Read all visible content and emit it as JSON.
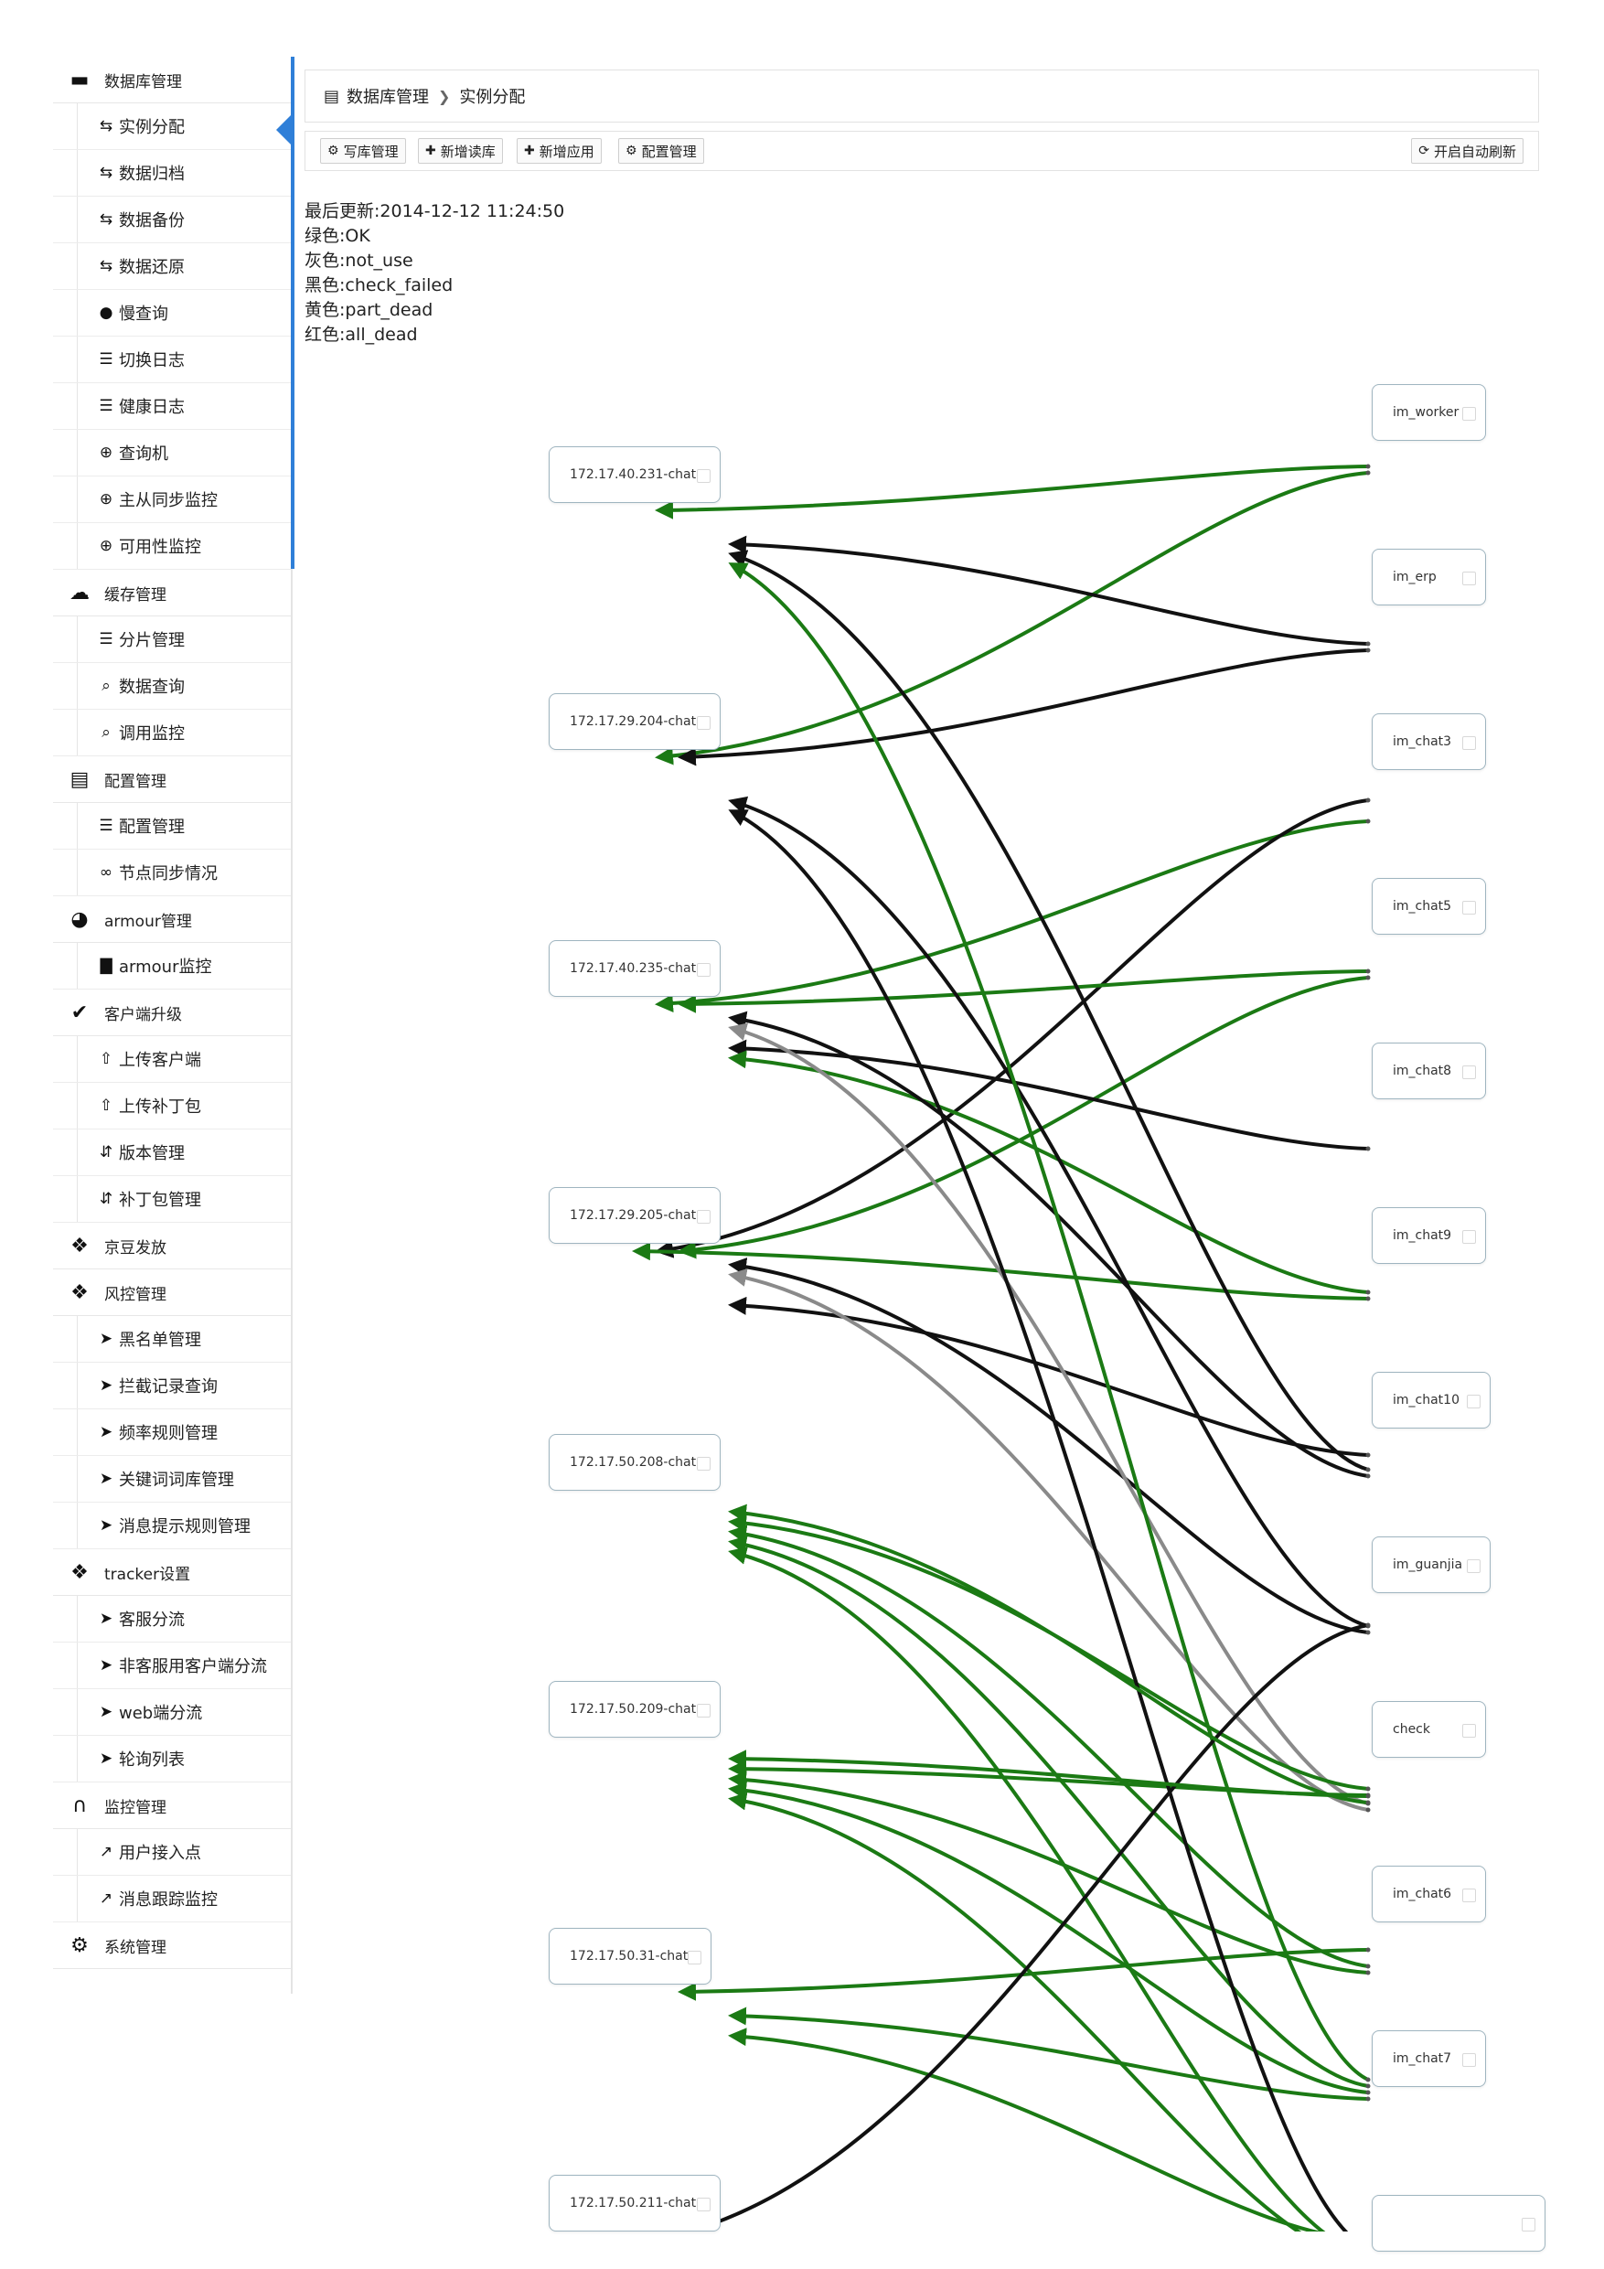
{
  "sidebar": {
    "groups": [
      {
        "id": "db",
        "label": "数据库管理",
        "icon": "database-icon",
        "items": [
          {
            "label": "实例分配",
            "icon": "retweet-icon",
            "active": true
          },
          {
            "label": "数据归档",
            "icon": "retweet-icon"
          },
          {
            "label": "数据备份",
            "icon": "retweet-icon"
          },
          {
            "label": "数据还原",
            "icon": "retweet-icon"
          },
          {
            "label": "慢查询",
            "icon": "map-marker-icon"
          },
          {
            "label": "切换日志",
            "icon": "server-icon"
          },
          {
            "label": "健康日志",
            "icon": "server-icon"
          },
          {
            "label": "查询机",
            "icon": "zoom-in-icon"
          },
          {
            "label": "主从同步监控",
            "icon": "zoom-in-icon"
          },
          {
            "label": "可用性监控",
            "icon": "zoom-in-icon"
          }
        ]
      },
      {
        "id": "cache",
        "label": "缓存管理",
        "icon": "cloud-icon",
        "items": [
          {
            "label": "分片管理",
            "icon": "list-icon"
          },
          {
            "label": "数据查询",
            "icon": "search-icon"
          },
          {
            "label": "调用监控",
            "icon": "search-icon"
          }
        ]
      },
      {
        "id": "config",
        "label": "配置管理",
        "icon": "list-alt-icon",
        "items": [
          {
            "label": "配置管理",
            "icon": "list-icon"
          },
          {
            "label": "节点同步情况",
            "icon": "link-icon"
          }
        ]
      },
      {
        "id": "armour",
        "label": "armour管理",
        "icon": "globe-icon",
        "items": [
          {
            "label": "armour监控",
            "icon": "bar-chart-icon"
          }
        ]
      },
      {
        "id": "client",
        "label": "客户端升级",
        "icon": "check-mark-icon",
        "items": [
          {
            "label": "上传客户端",
            "icon": "upload-icon"
          },
          {
            "label": "上传补丁包",
            "icon": "upload-icon"
          },
          {
            "label": "版本管理",
            "icon": "sort-icon"
          },
          {
            "label": "补丁包管理",
            "icon": "sort-icon"
          }
        ]
      },
      {
        "id": "jd",
        "label": "京豆发放",
        "icon": "gift-icon",
        "items": []
      },
      {
        "id": "risk",
        "label": "风控管理",
        "icon": "gift-icon",
        "items": [
          {
            "label": "黑名单管理",
            "icon": "send-icon"
          },
          {
            "label": "拦截记录查询",
            "icon": "send-icon"
          },
          {
            "label": "频率规则管理",
            "icon": "send-icon"
          },
          {
            "label": "关键词词库管理",
            "icon": "send-icon"
          },
          {
            "label": "消息提示规则管理",
            "icon": "send-icon"
          }
        ]
      },
      {
        "id": "tracker",
        "label": "tracker设置",
        "icon": "gift-icon",
        "items": [
          {
            "label": "客服分流",
            "icon": "send-icon"
          },
          {
            "label": "非客服用客户端分流",
            "icon": "send-icon"
          },
          {
            "label": "web端分流",
            "icon": "send-icon"
          },
          {
            "label": "轮询列表",
            "icon": "send-icon"
          }
        ]
      },
      {
        "id": "monitor",
        "label": "监控管理",
        "icon": "headphones-icon",
        "items": [
          {
            "label": "用户接入点",
            "icon": "pushpin-icon"
          },
          {
            "label": "消息跟踪监控",
            "icon": "pushpin-icon"
          }
        ]
      },
      {
        "id": "system",
        "label": "系统管理",
        "icon": "gear-icon",
        "items": []
      }
    ]
  },
  "breadcrumb": {
    "icon": "database-icon",
    "parent": "数据库管理",
    "current": "实例分配"
  },
  "toolbar": {
    "write_db": "写库管理",
    "add_read_db": "新增读库",
    "add_app": "新增应用",
    "config_manage": "配置管理",
    "auto_refresh": "开启自动刷新"
  },
  "status": {
    "updated_label": "最后更新:",
    "updated_value": "2014-12-12 11:24:50",
    "legend": [
      {
        "label": "绿色:",
        "value": "OK"
      },
      {
        "label": "灰色:",
        "value": "not_use"
      },
      {
        "label": "黑色:",
        "value": "check_failed"
      },
      {
        "label": "黄色:",
        "value": "part_dead"
      },
      {
        "label": "红色:",
        "value": "all_dead"
      }
    ]
  },
  "graph": {
    "colors": {
      "green": "#1b7a14",
      "gray": "#8a8a8a",
      "black": "#111111",
      "lightgreen": "#d7ead5",
      "lightgray": "#cfcfcf"
    },
    "left_nodes": [
      {
        "id": "L0",
        "label": "172.17.40.231-chat"
      },
      {
        "id": "L1",
        "label": "172.17.29.204-chat"
      },
      {
        "id": "L2",
        "label": "172.17.40.235-chat"
      },
      {
        "id": "L3",
        "label": "172.17.29.205-chat"
      },
      {
        "id": "L4",
        "label": "172.17.50.208-chat"
      },
      {
        "id": "L5",
        "label": "172.17.50.209-chat"
      },
      {
        "id": "L6",
        "label": "172.17.50.31-chat"
      },
      {
        "id": "L7",
        "label": "172.17.50.211-chat"
      }
    ],
    "right_nodes": [
      {
        "id": "R0",
        "label": "im_worker"
      },
      {
        "id": "R1",
        "label": "im_erp"
      },
      {
        "id": "R2",
        "label": "im_chat3"
      },
      {
        "id": "R3",
        "label": "im_chat5"
      },
      {
        "id": "R4",
        "label": "im_chat8"
      },
      {
        "id": "R5",
        "label": "im_chat9"
      },
      {
        "id": "R6",
        "label": "im_chat10"
      },
      {
        "id": "R7",
        "label": "im_guanjia"
      },
      {
        "id": "R8",
        "label": "check"
      },
      {
        "id": "R9",
        "label": "im_chat6"
      },
      {
        "id": "R10",
        "label": "im_chat7"
      },
      {
        "id": "R11",
        "label": ""
      }
    ],
    "links": [
      {
        "from": "R0",
        "to": "L0",
        "color": "green",
        "dir": "left"
      },
      {
        "from": "R0",
        "to": "L1",
        "color": "green",
        "dir": "left"
      },
      {
        "from": "R1",
        "to": "L0",
        "color": "black",
        "dir": "right"
      },
      {
        "from": "R1",
        "to": "L1",
        "color": "black",
        "dir": "left"
      },
      {
        "from": "R2",
        "to": "L2",
        "color": "green",
        "dir": "left"
      },
      {
        "from": "R2",
        "to": "L3",
        "color": "black",
        "dir": "left"
      },
      {
        "from": "R3",
        "to": "L2",
        "color": "green",
        "dir": "left"
      },
      {
        "from": "R3",
        "to": "L3",
        "color": "green",
        "dir": "left"
      },
      {
        "from": "R4",
        "to": "L2",
        "color": "black",
        "dir": "right"
      },
      {
        "from": "R5",
        "to": "L2",
        "color": "green",
        "dir": "right"
      },
      {
        "from": "R5",
        "to": "L3",
        "color": "green",
        "dir": "left"
      },
      {
        "from": "R6",
        "to": "L0",
        "color": "black",
        "dir": "right"
      },
      {
        "from": "R6",
        "to": "L2",
        "color": "black",
        "dir": "right"
      },
      {
        "from": "R6",
        "to": "L3",
        "color": "black",
        "dir": "right"
      },
      {
        "from": "R7",
        "to": "L1",
        "color": "black",
        "dir": "right"
      },
      {
        "from": "R7",
        "to": "L3",
        "color": "black",
        "dir": "right"
      },
      {
        "from": "R8",
        "to": "L2",
        "color": "gray",
        "dir": "right"
      },
      {
        "from": "R8",
        "to": "L3",
        "color": "gray",
        "dir": "right"
      },
      {
        "from": "R8",
        "to": "L4",
        "color": "green",
        "dir": "right"
      },
      {
        "from": "R8",
        "to": "L5",
        "color": "green",
        "dir": "right"
      },
      {
        "from": "R9",
        "to": "L4",
        "color": "green",
        "dir": "right"
      },
      {
        "from": "R9",
        "to": "L5",
        "color": "green",
        "dir": "right"
      },
      {
        "from": "R10",
        "to": "L0",
        "color": "green",
        "dir": "right"
      },
      {
        "from": "R10",
        "to": "L4",
        "color": "green",
        "dir": "right"
      },
      {
        "from": "R10",
        "to": "L5",
        "color": "green",
        "dir": "right"
      },
      {
        "from": "R10",
        "to": "L6",
        "color": "green",
        "dir": "right"
      },
      {
        "from": "R9",
        "to": "L6",
        "color": "green",
        "dir": "left"
      },
      {
        "from": "R11",
        "to": "L1",
        "color": "black",
        "dir": "right"
      },
      {
        "from": "R11",
        "to": "L4",
        "color": "green",
        "dir": "right"
      },
      {
        "from": "R11",
        "to": "L5",
        "color": "green",
        "dir": "right"
      },
      {
        "from": "R11",
        "to": "L6",
        "color": "green",
        "dir": "right"
      },
      {
        "from": "R7",
        "to": "L7",
        "color": "black",
        "dir": "left"
      },
      {
        "from": "R8",
        "to": "L5",
        "color": "green",
        "dir": "right"
      },
      {
        "from": "R8",
        "to": "L4",
        "color": "green",
        "dir": "right"
      }
    ]
  }
}
